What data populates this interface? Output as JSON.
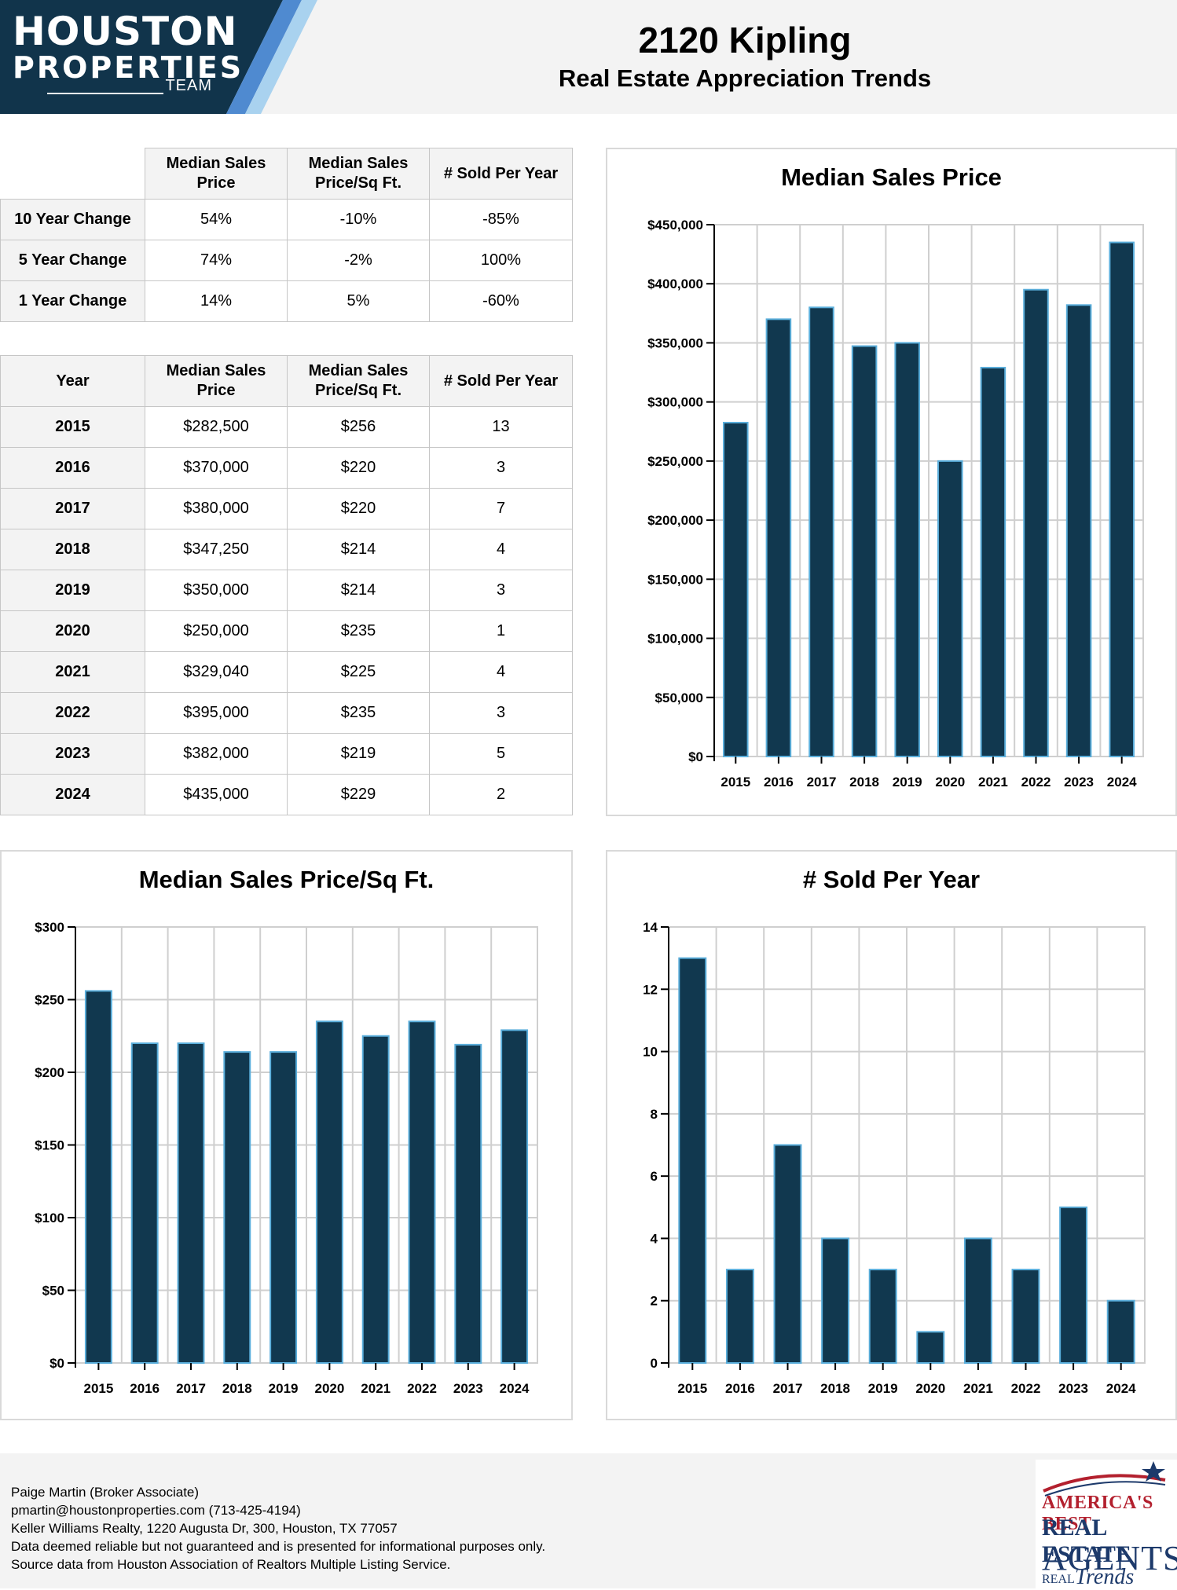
{
  "header": {
    "logo": {
      "line1": "HOUSTON",
      "line2": "PROPERTIES",
      "line3": "TEAM"
    },
    "title": "2120 Kipling",
    "subtitle": "Real Estate Appreciation Trends",
    "colors": {
      "logo_dark": "#11344b",
      "logo_light": "#a9d2ef",
      "logo_mid": "#4f8ad0"
    }
  },
  "change_table": {
    "headers": [
      "Median Sales Price",
      "Median Sales Price/Sq Ft.",
      "# Sold Per Year"
    ],
    "rows": [
      {
        "label": "10 Year Change",
        "values": [
          "54%",
          "-10%",
          "-85%"
        ]
      },
      {
        "label": "5 Year Change",
        "values": [
          "74%",
          "-2%",
          "100%"
        ]
      },
      {
        "label": "1 Year Change",
        "values": [
          "14%",
          "5%",
          "-60%"
        ]
      }
    ]
  },
  "year_table": {
    "headers": [
      "Year",
      "Median Sales Price",
      "Median Sales Price/Sq Ft.",
      "# Sold Per Year"
    ],
    "rows": [
      {
        "year": "2015",
        "price": "$282,500",
        "sqft": "$256",
        "sold": "13"
      },
      {
        "year": "2016",
        "price": "$370,000",
        "sqft": "$220",
        "sold": "3"
      },
      {
        "year": "2017",
        "price": "$380,000",
        "sqft": "$220",
        "sold": "7"
      },
      {
        "year": "2018",
        "price": "$347,250",
        "sqft": "$214",
        "sold": "4"
      },
      {
        "year": "2019",
        "price": "$350,000",
        "sqft": "$214",
        "sold": "3"
      },
      {
        "year": "2020",
        "price": "$250,000",
        "sqft": "$235",
        "sold": "1"
      },
      {
        "year": "2021",
        "price": "$329,040",
        "sqft": "$225",
        "sold": "4"
      },
      {
        "year": "2022",
        "price": "$395,000",
        "sqft": "$235",
        "sold": "3"
      },
      {
        "year": "2023",
        "price": "$382,000",
        "sqft": "$219",
        "sold": "5"
      },
      {
        "year": "2024",
        "price": "$435,000",
        "sqft": "$229",
        "sold": "2"
      }
    ]
  },
  "chart_data": [
    {
      "id": "price",
      "type": "bar",
      "title": "Median Sales Price",
      "categories": [
        "2015",
        "2016",
        "2017",
        "2018",
        "2019",
        "2020",
        "2021",
        "2022",
        "2023",
        "2024"
      ],
      "values": [
        282500,
        370000,
        380000,
        347250,
        350000,
        250000,
        329040,
        395000,
        382000,
        435000
      ],
      "ylim": [
        0,
        450000
      ],
      "yticks": [
        0,
        50000,
        100000,
        150000,
        200000,
        250000,
        300000,
        350000,
        400000,
        450000
      ],
      "ytick_labels": [
        "$0",
        "$50,000",
        "$100,000",
        "$150,000",
        "$200,000",
        "$250,000",
        "$300,000",
        "$350,000",
        "$400,000",
        "$450,000"
      ],
      "grid": true,
      "bar_color": "#11384f",
      "bar_edge": "#5aaedb"
    },
    {
      "id": "sqft",
      "type": "bar",
      "title": "Median Sales Price/Sq Ft.",
      "categories": [
        "2015",
        "2016",
        "2017",
        "2018",
        "2019",
        "2020",
        "2021",
        "2022",
        "2023",
        "2024"
      ],
      "values": [
        256,
        220,
        220,
        214,
        214,
        235,
        225,
        235,
        219,
        229
      ],
      "ylim": [
        0,
        300
      ],
      "yticks": [
        0,
        50,
        100,
        150,
        200,
        250,
        300
      ],
      "ytick_labels": [
        "$0",
        "$50",
        "$100",
        "$150",
        "$200",
        "$250",
        "$300"
      ],
      "grid": true,
      "bar_color": "#11384f",
      "bar_edge": "#5aaedb"
    },
    {
      "id": "sold",
      "type": "bar",
      "title": "# Sold Per Year",
      "categories": [
        "2015",
        "2016",
        "2017",
        "2018",
        "2019",
        "2020",
        "2021",
        "2022",
        "2023",
        "2024"
      ],
      "values": [
        13,
        3,
        7,
        4,
        3,
        1,
        4,
        3,
        5,
        2
      ],
      "ylim": [
        0,
        14
      ],
      "yticks": [
        0,
        2,
        4,
        6,
        8,
        10,
        12,
        14
      ],
      "ytick_labels": [
        "0",
        "2",
        "4",
        "6",
        "8",
        "10",
        "12",
        "14"
      ],
      "grid": true,
      "bar_color": "#11384f",
      "bar_edge": "#5aaedb"
    }
  ],
  "footer": {
    "lines": [
      "Paige Martin (Broker Associate)",
      "pmartin@houstonproperties.com (713-425-4194)",
      "Keller Williams Realty, 1220 Augusta Dr, 300, Houston, TX 77057",
      "Data deemed reliable but not guaranteed and is presented for informational purposes only.",
      "Source data from Houston Association of Realtors Multiple Listing Service."
    ],
    "badge": {
      "line1": "AMERICA'S BEST",
      "line2": "REAL ESTATE",
      "line3": "AGENTS",
      "line4": "REAL",
      "line5": "Trends"
    }
  }
}
